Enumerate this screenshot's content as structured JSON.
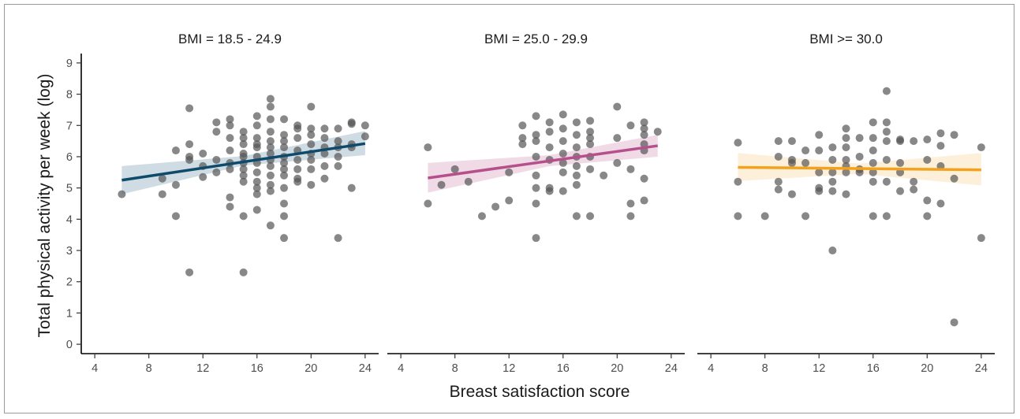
{
  "chart_data": {
    "type": "scatter",
    "xlabel": "Breast satisfaction score",
    "ylabel": "Total physical activity per week (log)",
    "xlim": [
      3,
      25
    ],
    "ylim": [
      -0.3,
      9.3
    ],
    "x_ticks": [
      4,
      8,
      12,
      16,
      20,
      24
    ],
    "y_ticks": [
      0,
      1,
      2,
      3,
      4,
      5,
      6,
      7,
      8,
      9
    ],
    "grid": false,
    "point_color": "#555555",
    "panels": [
      {
        "label": "BMI = 18.5 - 24.9",
        "line_color": "#0d4a6b",
        "band_color": "#a9bfcc",
        "trend": {
          "x": [
            6,
            24
          ],
          "y": [
            5.25,
            6.42
          ]
        },
        "ci": {
          "x": [
            6,
            15,
            24
          ],
          "lower": [
            4.8,
            5.72,
            6.05
          ],
          "upper": [
            5.7,
            6.02,
            6.82
          ]
        },
        "points": [
          [
            6,
            4.8
          ],
          [
            9,
            5.3
          ],
          [
            9,
            4.8
          ],
          [
            10,
            6.2
          ],
          [
            10,
            5.1
          ],
          [
            10,
            4.1
          ],
          [
            11,
            7.55
          ],
          [
            11,
            6.4
          ],
          [
            11,
            6.0
          ],
          [
            11,
            5.9
          ],
          [
            11,
            2.3
          ],
          [
            12,
            5.7
          ],
          [
            12,
            5.35
          ],
          [
            12,
            6.1
          ],
          [
            13,
            7.1
          ],
          [
            13,
            6.8
          ],
          [
            13,
            5.5
          ],
          [
            13,
            5.9
          ],
          [
            14,
            7.2
          ],
          [
            14,
            7.0
          ],
          [
            14,
            6.6
          ],
          [
            14,
            6.2
          ],
          [
            14,
            5.8
          ],
          [
            14,
            5.6
          ],
          [
            14,
            4.7
          ],
          [
            14,
            4.4
          ],
          [
            15,
            6.8
          ],
          [
            15,
            6.6
          ],
          [
            15,
            6.4
          ],
          [
            15,
            6.1
          ],
          [
            15,
            6.0
          ],
          [
            15,
            5.8
          ],
          [
            15,
            5.6
          ],
          [
            15,
            5.4
          ],
          [
            15,
            5.2
          ],
          [
            15,
            4.1
          ],
          [
            15,
            2.3
          ],
          [
            16,
            7.3
          ],
          [
            16,
            7.0
          ],
          [
            16,
            6.6
          ],
          [
            16,
            6.4
          ],
          [
            16,
            6.3
          ],
          [
            16,
            6.0
          ],
          [
            16,
            5.8
          ],
          [
            16,
            5.5
          ],
          [
            16,
            5.2
          ],
          [
            16,
            5.0
          ],
          [
            16,
            4.8
          ],
          [
            16,
            4.3
          ],
          [
            17,
            7.85
          ],
          [
            17,
            7.6
          ],
          [
            17,
            7.2
          ],
          [
            17,
            6.8
          ],
          [
            17,
            6.5
          ],
          [
            17,
            6.3
          ],
          [
            17,
            6.1
          ],
          [
            17,
            5.9
          ],
          [
            17,
            5.7
          ],
          [
            17,
            5.4
          ],
          [
            17,
            5.1
          ],
          [
            17,
            4.9
          ],
          [
            17,
            3.8
          ],
          [
            18,
            7.2
          ],
          [
            18,
            6.7
          ],
          [
            18,
            6.5
          ],
          [
            18,
            6.3
          ],
          [
            18,
            6.0
          ],
          [
            18,
            5.8
          ],
          [
            18,
            5.6
          ],
          [
            18,
            5.4
          ],
          [
            18,
            5.0
          ],
          [
            18,
            4.5
          ],
          [
            18,
            4.1
          ],
          [
            18,
            3.4
          ],
          [
            19,
            7.0
          ],
          [
            19,
            6.9
          ],
          [
            19,
            6.6
          ],
          [
            19,
            6.2
          ],
          [
            19,
            5.9
          ],
          [
            19,
            5.6
          ],
          [
            19,
            5.3
          ],
          [
            19,
            5.2
          ],
          [
            20,
            7.6
          ],
          [
            20,
            6.9
          ],
          [
            20,
            6.7
          ],
          [
            20,
            6.4
          ],
          [
            20,
            6.1
          ],
          [
            20,
            5.9
          ],
          [
            20,
            5.6
          ],
          [
            20,
            5.1
          ],
          [
            21,
            6.9
          ],
          [
            21,
            6.6
          ],
          [
            21,
            6.3
          ],
          [
            21,
            6.1
          ],
          [
            21,
            5.7
          ],
          [
            21,
            5.3
          ],
          [
            22,
            6.9
          ],
          [
            22,
            6.5
          ],
          [
            22,
            6.3
          ],
          [
            22,
            6.0
          ],
          [
            22,
            5.7
          ],
          [
            22,
            3.4
          ],
          [
            23,
            7.1
          ],
          [
            23,
            7.05
          ],
          [
            23,
            6.4
          ],
          [
            23,
            6.3
          ],
          [
            23,
            5.0
          ],
          [
            24,
            7.0
          ],
          [
            24,
            6.65
          ]
        ]
      },
      {
        "label": "BMI = 25.0 - 29.9",
        "line_color": "#b5508d",
        "band_color": "#e2bbd2",
        "trend": {
          "x": [
            6,
            23
          ],
          "y": [
            5.32,
            6.35
          ]
        },
        "ci": {
          "x": [
            6,
            15,
            23
          ],
          "lower": [
            4.85,
            5.7,
            6.0
          ],
          "upper": [
            5.8,
            6.05,
            6.7
          ]
        },
        "points": [
          [
            6,
            6.3
          ],
          [
            6,
            4.5
          ],
          [
            7,
            5.1
          ],
          [
            8,
            5.6
          ],
          [
            9,
            5.2
          ],
          [
            10,
            4.1
          ],
          [
            11,
            4.4
          ],
          [
            12,
            5.5
          ],
          [
            12,
            4.6
          ],
          [
            13,
            7.0
          ],
          [
            13,
            6.6
          ],
          [
            13,
            6.4
          ],
          [
            14,
            7.3
          ],
          [
            14,
            6.7
          ],
          [
            14,
            6.5
          ],
          [
            14,
            6.0
          ],
          [
            14,
            5.4
          ],
          [
            14,
            5.0
          ],
          [
            14,
            4.5
          ],
          [
            14,
            3.4
          ],
          [
            15,
            7.1
          ],
          [
            15,
            6.8
          ],
          [
            15,
            6.3
          ],
          [
            15,
            5.9
          ],
          [
            15,
            5.0
          ],
          [
            15,
            4.9
          ],
          [
            16,
            7.35
          ],
          [
            16,
            6.9
          ],
          [
            16,
            6.5
          ],
          [
            16,
            6.1
          ],
          [
            16,
            5.8
          ],
          [
            16,
            5.5
          ],
          [
            16,
            4.9
          ],
          [
            17,
            7.1
          ],
          [
            17,
            6.7
          ],
          [
            17,
            6.3
          ],
          [
            17,
            6.0
          ],
          [
            17,
            5.7
          ],
          [
            17,
            5.4
          ],
          [
            17,
            5.1
          ],
          [
            17,
            4.1
          ],
          [
            18,
            7.15
          ],
          [
            18,
            6.8
          ],
          [
            18,
            6.6
          ],
          [
            18,
            6.4
          ],
          [
            18,
            6.0
          ],
          [
            18,
            5.6
          ],
          [
            18,
            4.1
          ],
          [
            19,
            5.4
          ],
          [
            20,
            7.6
          ],
          [
            20,
            6.6
          ],
          [
            20,
            5.8
          ],
          [
            21,
            7.0
          ],
          [
            21,
            5.6
          ],
          [
            21,
            4.5
          ],
          [
            21,
            4.1
          ],
          [
            22,
            7.1
          ],
          [
            22,
            6.9
          ],
          [
            22,
            6.7
          ],
          [
            22,
            6.4
          ],
          [
            22,
            6.2
          ],
          [
            22,
            5.3
          ],
          [
            22,
            4.6
          ],
          [
            23,
            6.8
          ]
        ]
      },
      {
        "label": "BMI >= 30.0",
        "line_color": "#f4a21c",
        "band_color": "#fbe3bd",
        "trend": {
          "x": [
            6,
            24
          ],
          "y": [
            5.66,
            5.58
          ]
        },
        "ci": {
          "x": [
            6,
            15,
            24
          ],
          "lower": [
            5.22,
            5.45,
            5.08
          ],
          "upper": [
            6.12,
            5.78,
            6.12
          ]
        },
        "points": [
          [
            6,
            6.45
          ],
          [
            6,
            5.2
          ],
          [
            6,
            4.1
          ],
          [
            8,
            4.1
          ],
          [
            9,
            6.5
          ],
          [
            9,
            6.0
          ],
          [
            9,
            5.2
          ],
          [
            9,
            4.95
          ],
          [
            10,
            6.5
          ],
          [
            10,
            5.9
          ],
          [
            10,
            5.8
          ],
          [
            10,
            4.8
          ],
          [
            11,
            6.2
          ],
          [
            11,
            5.8
          ],
          [
            11,
            4.1
          ],
          [
            12,
            6.7
          ],
          [
            12,
            6.2
          ],
          [
            12,
            5.5
          ],
          [
            12,
            5.0
          ],
          [
            12,
            4.9
          ],
          [
            13,
            6.3
          ],
          [
            13,
            5.9
          ],
          [
            13,
            5.5
          ],
          [
            13,
            5.2
          ],
          [
            13,
            4.9
          ],
          [
            13,
            3.0
          ],
          [
            14,
            6.9
          ],
          [
            14,
            6.6
          ],
          [
            14,
            6.3
          ],
          [
            14,
            5.9
          ],
          [
            14,
            5.7
          ],
          [
            14,
            5.5
          ],
          [
            14,
            4.8
          ],
          [
            15,
            6.6
          ],
          [
            15,
            6.0
          ],
          [
            15,
            5.6
          ],
          [
            15,
            5.5
          ],
          [
            16,
            7.1
          ],
          [
            16,
            6.6
          ],
          [
            16,
            6.2
          ],
          [
            16,
            5.8
          ],
          [
            16,
            5.5
          ],
          [
            16,
            5.2
          ],
          [
            16,
            4.1
          ],
          [
            17,
            8.1
          ],
          [
            17,
            7.1
          ],
          [
            17,
            6.8
          ],
          [
            17,
            6.5
          ],
          [
            17,
            5.9
          ],
          [
            17,
            5.2
          ],
          [
            17,
            4.1
          ],
          [
            18,
            6.55
          ],
          [
            18,
            6.5
          ],
          [
            18,
            5.8
          ],
          [
            18,
            5.5
          ],
          [
            18,
            4.9
          ],
          [
            19,
            6.5
          ],
          [
            19,
            5.2
          ],
          [
            19,
            4.95
          ],
          [
            20,
            6.55
          ],
          [
            20,
            5.9
          ],
          [
            20,
            4.6
          ],
          [
            20,
            4.1
          ],
          [
            21,
            6.75
          ],
          [
            21,
            6.35
          ],
          [
            21,
            5.7
          ],
          [
            21,
            4.5
          ],
          [
            22,
            6.7
          ],
          [
            22,
            5.3
          ],
          [
            22,
            0.7
          ],
          [
            24,
            6.3
          ],
          [
            24,
            3.4
          ]
        ]
      }
    ]
  }
}
